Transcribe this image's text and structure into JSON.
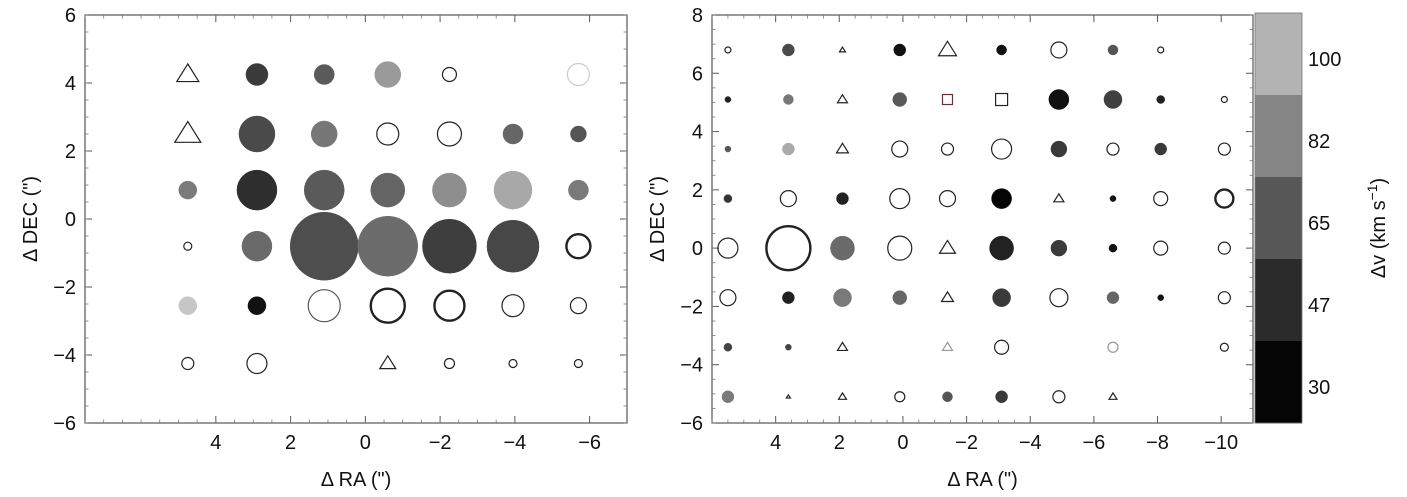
{
  "chart_data": [
    {
      "type": "scatter",
      "xlabel": "Δ RA (\")",
      "ylabel": "Δ DEC (\")",
      "xlim": [
        7.5,
        -7.0
      ],
      "ylim": [
        -6,
        6
      ],
      "x_ticks": [
        4,
        2,
        0,
        -2,
        -4,
        -6
      ],
      "x_tick_labels": [
        "4",
        "2",
        "0",
        "−2",
        "−4",
        "−6"
      ],
      "y_ticks": [
        -6,
        -4,
        -2,
        0,
        2,
        4,
        6
      ],
      "y_tick_labels": [
        "−6",
        "−4",
        "−2",
        "0",
        "2",
        "4",
        "6"
      ],
      "grid": false,
      "marker_encoding": {
        "size": "value",
        "fill": "Δv (km s⁻¹)",
        "open_circle": "unfilled",
        "triangle": "triangle marker"
      },
      "points": [
        {
          "x": 4.75,
          "y": 4.25,
          "shape": "triangle",
          "size": 11,
          "fill": "none"
        },
        {
          "x": 2.9,
          "y": 4.25,
          "shape": "circle",
          "size": 11,
          "fill": "#3a3a3a"
        },
        {
          "x": 1.1,
          "y": 4.25,
          "shape": "circle",
          "size": 10,
          "fill": "#5a5a5a"
        },
        {
          "x": -0.6,
          "y": 4.25,
          "shape": "circle",
          "size": 13,
          "fill": "#9a9a9a"
        },
        {
          "x": -2.25,
          "y": 4.25,
          "shape": "circle",
          "size": 7,
          "fill": "none"
        },
        {
          "x": -5.7,
          "y": 4.25,
          "shape": "circle",
          "size": 11,
          "fill": "none",
          "stroke": "#cccccc"
        },
        {
          "x": 4.75,
          "y": 2.5,
          "shape": "triangle",
          "size": 13,
          "fill": "none"
        },
        {
          "x": 2.9,
          "y": 2.5,
          "shape": "circle",
          "size": 18,
          "fill": "#4a4a4a"
        },
        {
          "x": 1.1,
          "y": 2.5,
          "shape": "circle",
          "size": 13,
          "fill": "#777777"
        },
        {
          "x": -0.6,
          "y": 2.5,
          "shape": "circle",
          "size": 11,
          "fill": "none"
        },
        {
          "x": -2.25,
          "y": 2.5,
          "shape": "circle",
          "size": 12,
          "fill": "none"
        },
        {
          "x": -3.95,
          "y": 2.5,
          "shape": "circle",
          "size": 10,
          "fill": "#666666"
        },
        {
          "x": -5.7,
          "y": 2.5,
          "shape": "circle",
          "size": 8,
          "fill": "#555555"
        },
        {
          "x": 4.75,
          "y": 0.85,
          "shape": "circle",
          "size": 9,
          "fill": "#7a7a7a"
        },
        {
          "x": 2.9,
          "y": 0.85,
          "shape": "circle",
          "size": 20,
          "fill": "#2e2e2e"
        },
        {
          "x": 1.1,
          "y": 0.85,
          "shape": "circle",
          "size": 20,
          "fill": "#5a5a5a"
        },
        {
          "x": -0.6,
          "y": 0.85,
          "shape": "circle",
          "size": 17,
          "fill": "#646464"
        },
        {
          "x": -2.25,
          "y": 0.85,
          "shape": "circle",
          "size": 17,
          "fill": "#8e8e8e"
        },
        {
          "x": -3.95,
          "y": 0.85,
          "shape": "circle",
          "size": 19,
          "fill": "#a8a8a8"
        },
        {
          "x": -5.7,
          "y": 0.85,
          "shape": "circle",
          "size": 10,
          "fill": "#7a7a7a"
        },
        {
          "x": 4.75,
          "y": -0.8,
          "shape": "circle",
          "size": 4,
          "fill": "none"
        },
        {
          "x": 2.9,
          "y": -0.8,
          "shape": "circle",
          "size": 15,
          "fill": "#6a6a6a"
        },
        {
          "x": 1.1,
          "y": -0.8,
          "shape": "circle",
          "size": 34,
          "fill": "#4e4e4e"
        },
        {
          "x": -0.6,
          "y": -0.8,
          "shape": "circle",
          "size": 30,
          "fill": "#6c6c6c"
        },
        {
          "x": -2.25,
          "y": -0.8,
          "shape": "circle",
          "size": 27,
          "fill": "#3e3e3e"
        },
        {
          "x": -3.95,
          "y": -0.8,
          "shape": "circle",
          "size": 26,
          "fill": "#474747"
        },
        {
          "x": -5.7,
          "y": -0.8,
          "shape": "circle",
          "size": 12,
          "fill": "none",
          "strong": true
        },
        {
          "x": 4.75,
          "y": -2.55,
          "shape": "circle",
          "size": 9,
          "fill": "#c6c6c6"
        },
        {
          "x": 2.9,
          "y": -2.55,
          "shape": "circle",
          "size": 9,
          "fill": "#111111"
        },
        {
          "x": 1.1,
          "y": -2.55,
          "shape": "circle",
          "size": 16,
          "fill": "none",
          "stroke": "#555555"
        },
        {
          "x": -0.6,
          "y": -2.55,
          "shape": "circle",
          "size": 17,
          "fill": "none",
          "strong": true
        },
        {
          "x": -2.25,
          "y": -2.55,
          "shape": "circle",
          "size": 15,
          "fill": "none",
          "strong": true
        },
        {
          "x": -3.95,
          "y": -2.55,
          "shape": "circle",
          "size": 11,
          "fill": "none"
        },
        {
          "x": -5.7,
          "y": -2.55,
          "shape": "circle",
          "size": 8,
          "fill": "none"
        },
        {
          "x": 4.75,
          "y": -4.25,
          "shape": "circle",
          "size": 6,
          "fill": "none"
        },
        {
          "x": 2.9,
          "y": -4.25,
          "shape": "circle",
          "size": 10,
          "fill": "none"
        },
        {
          "x": -0.6,
          "y": -4.25,
          "shape": "triangle",
          "size": 8,
          "fill": "none"
        },
        {
          "x": -2.25,
          "y": -4.25,
          "shape": "circle",
          "size": 5,
          "fill": "none"
        },
        {
          "x": -3.95,
          "y": -4.25,
          "shape": "circle",
          "size": 4,
          "fill": "none"
        },
        {
          "x": -5.7,
          "y": -4.25,
          "shape": "circle",
          "size": 4,
          "fill": "none"
        }
      ]
    },
    {
      "type": "scatter",
      "xlabel": "Δ RA (\")",
      "ylabel": "Δ DEC (\")",
      "xlim": [
        6.0,
        -11.0
      ],
      "ylim": [
        -6,
        8
      ],
      "x_ticks": [
        4,
        2,
        0,
        -2,
        -4,
        -6,
        -8,
        -10
      ],
      "x_tick_labels": [
        "4",
        "2",
        "0",
        "−2",
        "−4",
        "−6",
        "−8",
        "−10"
      ],
      "y_ticks": [
        -6,
        -4,
        -2,
        0,
        2,
        4,
        6,
        8
      ],
      "y_tick_labels": [
        "−6",
        "−4",
        "−2",
        "0",
        "2",
        "4",
        "6",
        "8"
      ],
      "grid": false,
      "colorbar": {
        "label": "Δv (km s",
        "label_sup": "−1",
        "label_end": ")",
        "ticks": [
          "100",
          "82",
          "65",
          "47",
          "30"
        ],
        "bands": [
          "#b3b3b3",
          "#858585",
          "#575757",
          "#2a2a2a",
          "#050505"
        ]
      },
      "points": [
        {
          "x": 5.5,
          "y": 6.8,
          "shape": "circle",
          "size": 3,
          "fill": "none"
        },
        {
          "x": 3.6,
          "y": 6.8,
          "shape": "circle",
          "size": 6,
          "fill": "#4a4a4a"
        },
        {
          "x": 1.9,
          "y": 6.8,
          "shape": "triangle",
          "size": 3,
          "fill": "none"
        },
        {
          "x": 0.1,
          "y": 6.8,
          "shape": "circle",
          "size": 6,
          "fill": "#111111"
        },
        {
          "x": -1.4,
          "y": 6.8,
          "shape": "triangle",
          "size": 9,
          "fill": "none"
        },
        {
          "x": -3.1,
          "y": 6.8,
          "shape": "circle",
          "size": 5,
          "fill": "#111111"
        },
        {
          "x": -4.9,
          "y": 6.8,
          "shape": "circle",
          "size": 8,
          "fill": "none"
        },
        {
          "x": -6.6,
          "y": 6.8,
          "shape": "circle",
          "size": 5,
          "fill": "#555555"
        },
        {
          "x": -8.1,
          "y": 6.8,
          "shape": "circle",
          "size": 3,
          "fill": "none"
        },
        {
          "x": 5.5,
          "y": 5.1,
          "shape": "circle",
          "size": 3,
          "fill": "#222222"
        },
        {
          "x": 3.6,
          "y": 5.1,
          "shape": "circle",
          "size": 5,
          "fill": "#777777"
        },
        {
          "x": 1.9,
          "y": 5.1,
          "shape": "triangle",
          "size": 5,
          "fill": "none"
        },
        {
          "x": 0.1,
          "y": 5.1,
          "shape": "circle",
          "size": 7,
          "fill": "#5a5a5a"
        },
        {
          "x": -1.4,
          "y": 5.1,
          "shape": "square",
          "size": 5,
          "fill": "none",
          "stroke": "#7a2a2a"
        },
        {
          "x": -3.1,
          "y": 5.1,
          "shape": "square",
          "size": 6,
          "fill": "none"
        },
        {
          "x": -4.9,
          "y": 5.1,
          "shape": "circle",
          "size": 10,
          "fill": "#111111"
        },
        {
          "x": -6.6,
          "y": 5.1,
          "shape": "circle",
          "size": 9,
          "fill": "#404040"
        },
        {
          "x": -8.1,
          "y": 5.1,
          "shape": "circle",
          "size": 4,
          "fill": "#222222"
        },
        {
          "x": -10.1,
          "y": 5.1,
          "shape": "circle",
          "size": 3,
          "fill": "none"
        },
        {
          "x": 5.5,
          "y": 3.4,
          "shape": "circle",
          "size": 3,
          "fill": "#555555"
        },
        {
          "x": 3.6,
          "y": 3.4,
          "shape": "circle",
          "size": 6,
          "fill": "#aaaaaa"
        },
        {
          "x": 1.9,
          "y": 3.4,
          "shape": "triangle",
          "size": 6,
          "fill": "none"
        },
        {
          "x": 0.1,
          "y": 3.4,
          "shape": "circle",
          "size": 8,
          "fill": "none"
        },
        {
          "x": -1.4,
          "y": 3.4,
          "shape": "circle",
          "size": 6,
          "fill": "none"
        },
        {
          "x": -3.1,
          "y": 3.4,
          "shape": "circle",
          "size": 10,
          "fill": "none"
        },
        {
          "x": -4.9,
          "y": 3.4,
          "shape": "circle",
          "size": 8,
          "fill": "#3a3a3a"
        },
        {
          "x": -6.6,
          "y": 3.4,
          "shape": "circle",
          "size": 6,
          "fill": "none"
        },
        {
          "x": -8.1,
          "y": 3.4,
          "shape": "circle",
          "size": 6,
          "fill": "#3a3a3a"
        },
        {
          "x": -10.1,
          "y": 3.4,
          "shape": "circle",
          "size": 6,
          "fill": "none"
        },
        {
          "x": 5.5,
          "y": 1.7,
          "shape": "circle",
          "size": 4,
          "fill": "#333333"
        },
        {
          "x": 3.6,
          "y": 1.7,
          "shape": "circle",
          "size": 8,
          "fill": "none"
        },
        {
          "x": 1.9,
          "y": 1.7,
          "shape": "circle",
          "size": 6,
          "fill": "#222222"
        },
        {
          "x": 0.1,
          "y": 1.7,
          "shape": "circle",
          "size": 10,
          "fill": "none"
        },
        {
          "x": -1.4,
          "y": 1.7,
          "shape": "circle",
          "size": 8,
          "fill": "none"
        },
        {
          "x": -3.1,
          "y": 1.7,
          "shape": "circle",
          "size": 10,
          "fill": "#050505"
        },
        {
          "x": -4.9,
          "y": 1.7,
          "shape": "triangle",
          "size": 5,
          "fill": "none"
        },
        {
          "x": -6.6,
          "y": 1.7,
          "shape": "circle",
          "size": 3,
          "fill": "#111111"
        },
        {
          "x": -8.1,
          "y": 1.7,
          "shape": "circle",
          "size": 7,
          "fill": "none"
        },
        {
          "x": -10.1,
          "y": 1.7,
          "shape": "circle",
          "size": 9,
          "fill": "none",
          "strong": true
        },
        {
          "x": 5.5,
          "y": 0,
          "shape": "circle",
          "size": 10,
          "fill": "none"
        },
        {
          "x": 3.6,
          "y": 0,
          "shape": "circle",
          "size": 22,
          "fill": "none",
          "strong": true
        },
        {
          "x": 1.9,
          "y": 0,
          "shape": "circle",
          "size": 12,
          "fill": "#6a6a6a"
        },
        {
          "x": 0.1,
          "y": 0,
          "shape": "circle",
          "size": 12,
          "fill": "none"
        },
        {
          "x": -1.4,
          "y": 0,
          "shape": "triangle",
          "size": 8,
          "fill": "none"
        },
        {
          "x": -3.1,
          "y": 0,
          "shape": "circle",
          "size": 12,
          "fill": "#222222"
        },
        {
          "x": -4.9,
          "y": 0,
          "shape": "circle",
          "size": 8,
          "fill": "#3a3a3a"
        },
        {
          "x": -6.6,
          "y": 0,
          "shape": "circle",
          "size": 4,
          "fill": "#111111"
        },
        {
          "x": -8.1,
          "y": 0,
          "shape": "circle",
          "size": 7,
          "fill": "none"
        },
        {
          "x": -10.1,
          "y": 0,
          "shape": "circle",
          "size": 6,
          "fill": "none"
        },
        {
          "x": 5.5,
          "y": -1.7,
          "shape": "circle",
          "size": 8,
          "fill": "none"
        },
        {
          "x": 3.6,
          "y": -1.7,
          "shape": "circle",
          "size": 6,
          "fill": "#222222"
        },
        {
          "x": 1.9,
          "y": -1.7,
          "shape": "circle",
          "size": 9,
          "fill": "#7a7a7a"
        },
        {
          "x": 0.1,
          "y": -1.7,
          "shape": "circle",
          "size": 7,
          "fill": "#666666"
        },
        {
          "x": -1.4,
          "y": -1.7,
          "shape": "triangle",
          "size": 6,
          "fill": "none"
        },
        {
          "x": -3.1,
          "y": -1.7,
          "shape": "circle",
          "size": 9,
          "fill": "#3a3a3a"
        },
        {
          "x": -4.9,
          "y": -1.7,
          "shape": "circle",
          "size": 9,
          "fill": "none"
        },
        {
          "x": -6.6,
          "y": -1.7,
          "shape": "circle",
          "size": 6,
          "fill": "#666666"
        },
        {
          "x": -8.1,
          "y": -1.7,
          "shape": "circle",
          "size": 3,
          "fill": "#111111"
        },
        {
          "x": -10.1,
          "y": -1.7,
          "shape": "circle",
          "size": 6,
          "fill": "none"
        },
        {
          "x": 5.5,
          "y": -3.4,
          "shape": "circle",
          "size": 4,
          "fill": "#444444"
        },
        {
          "x": 3.6,
          "y": -3.4,
          "shape": "circle",
          "size": 3,
          "fill": "#444444"
        },
        {
          "x": 1.9,
          "y": -3.4,
          "shape": "triangle",
          "size": 5,
          "fill": "none"
        },
        {
          "x": -1.4,
          "y": -3.4,
          "shape": "triangle",
          "size": 5,
          "fill": "none",
          "stroke": "#999999"
        },
        {
          "x": -3.1,
          "y": -3.4,
          "shape": "circle",
          "size": 7,
          "fill": "none"
        },
        {
          "x": -6.6,
          "y": -3.4,
          "shape": "circle",
          "size": 5,
          "fill": "none",
          "stroke": "#999999"
        },
        {
          "x": -10.1,
          "y": -3.4,
          "shape": "circle",
          "size": 4,
          "fill": "none"
        },
        {
          "x": 5.5,
          "y": -5.1,
          "shape": "circle",
          "size": 6,
          "fill": "#7a7a7a"
        },
        {
          "x": 3.6,
          "y": -5.1,
          "shape": "triangle",
          "size": 2,
          "fill": "none"
        },
        {
          "x": 1.9,
          "y": -5.1,
          "shape": "triangle",
          "size": 4,
          "fill": "none"
        },
        {
          "x": 0.1,
          "y": -5.1,
          "shape": "circle",
          "size": 5,
          "fill": "none"
        },
        {
          "x": -1.4,
          "y": -5.1,
          "shape": "circle",
          "size": 5,
          "fill": "#555555"
        },
        {
          "x": -3.1,
          "y": -5.1,
          "shape": "circle",
          "size": 6,
          "fill": "#3a3a3a"
        },
        {
          "x": -4.9,
          "y": -5.1,
          "shape": "circle",
          "size": 6,
          "fill": "none"
        },
        {
          "x": -6.6,
          "y": -5.1,
          "shape": "triangle",
          "size": 4,
          "fill": "none"
        }
      ]
    }
  ]
}
